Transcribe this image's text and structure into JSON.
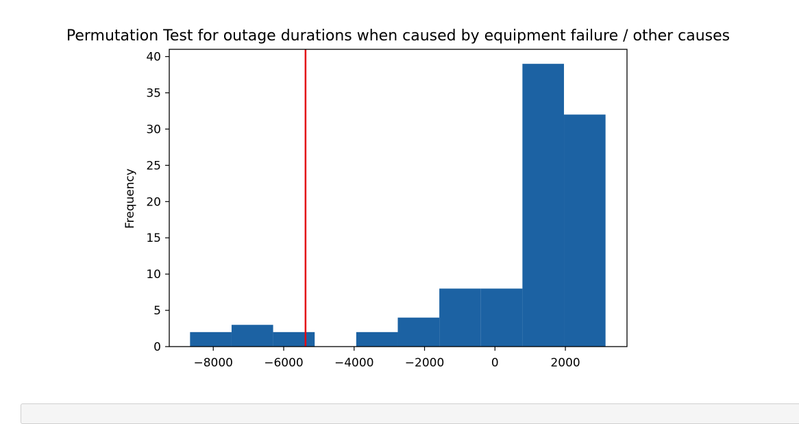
{
  "chart_data": {
    "type": "bar",
    "title": "Permutation Test for outage durations when caused by equipment failure / other causes",
    "xlabel": "",
    "ylabel": "Frequency",
    "xlim": [
      -9250,
      3750
    ],
    "ylim": [
      0,
      41
    ],
    "xticks": [
      -8000,
      -6000,
      -4000,
      -2000,
      0,
      2000
    ],
    "xtick_labels": [
      "−8000",
      "−6000",
      "−4000",
      "−2000",
      "0",
      "2000"
    ],
    "yticks": [
      0,
      5,
      10,
      15,
      20,
      25,
      30,
      35,
      40
    ],
    "ytick_labels": [
      "0",
      "5",
      "10",
      "15",
      "20",
      "25",
      "30",
      "35",
      "40"
    ],
    "bins": [
      {
        "x0": -8660,
        "x1": -7480,
        "value": 2
      },
      {
        "x0": -7480,
        "x1": -6300,
        "value": 3
      },
      {
        "x0": -6300,
        "x1": -5120,
        "value": 2
      },
      {
        "x0": -5120,
        "x1": -3940,
        "value": 0
      },
      {
        "x0": -3940,
        "x1": -2760,
        "value": 2
      },
      {
        "x0": -2760,
        "x1": -1580,
        "value": 4
      },
      {
        "x0": -1580,
        "x1": -400,
        "value": 8
      },
      {
        "x0": -400,
        "x1": 780,
        "value": 8
      },
      {
        "x0": 780,
        "x1": 1960,
        "value": 39
      },
      {
        "x0": 1960,
        "x1": 3140,
        "value": 32
      }
    ],
    "observed_statistic": -5380,
    "bar_color": "#1c62a3",
    "line_color": "#e30613",
    "grid": false,
    "legend": false
  }
}
